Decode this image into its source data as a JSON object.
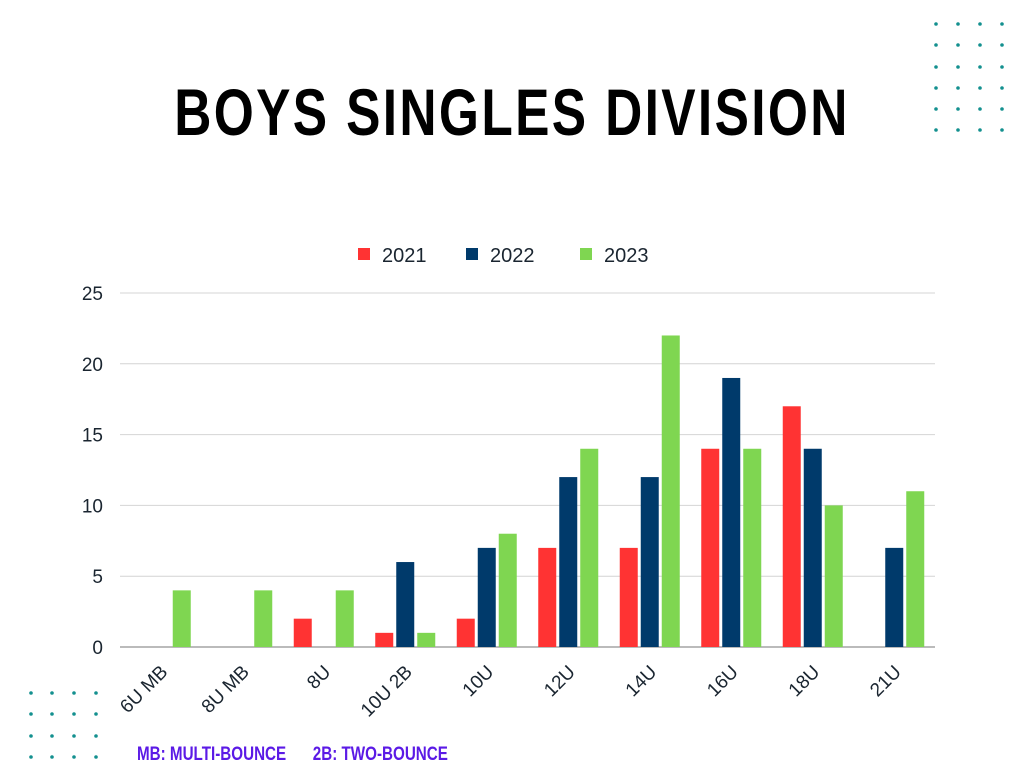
{
  "chart_data": {
    "type": "bar",
    "title": "BOYS SINGLES DIVISION",
    "xlabel": "",
    "ylabel": "",
    "ylim": [
      0,
      25
    ],
    "yticks": [
      0,
      5,
      10,
      15,
      20,
      25
    ],
    "grid": true,
    "legend_position": "top-center",
    "categories": [
      "6U MB",
      "8U MB",
      "8U",
      "10U 2B",
      "10U",
      "12U",
      "14U",
      "16U",
      "18U",
      "21U"
    ],
    "series": [
      {
        "name": "2021",
        "color": "#ff3333",
        "values": [
          0,
          0,
          2,
          1,
          2,
          7,
          7,
          14,
          17,
          0
        ]
      },
      {
        "name": "2022",
        "color": "#003a6b",
        "values": [
          0,
          0,
          0,
          6,
          7,
          12,
          12,
          19,
          14,
          7
        ]
      },
      {
        "name": "2023",
        "color": "#7fd651",
        "values": [
          4,
          4,
          4,
          1,
          8,
          14,
          22,
          14,
          10,
          11
        ]
      }
    ]
  },
  "footnotes": [
    "MB: MULTI-BOUNCE",
    "2B: TWO-BOUNCE"
  ],
  "colors": {
    "dots": "#13908f",
    "footnote": "#5b1ae6"
  }
}
